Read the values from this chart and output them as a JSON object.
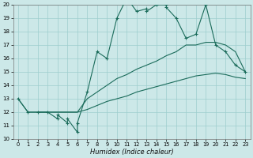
{
  "xlabel": "Humidex (Indice chaleur)",
  "bg_color": "#cce8e8",
  "grid_color": "#9ecece",
  "line_color": "#1a6b5a",
  "xlim_min": 0,
  "xlim_max": 23,
  "ylim_min": 10,
  "ylim_max": 20,
  "xticks": [
    0,
    1,
    2,
    3,
    4,
    5,
    6,
    7,
    8,
    9,
    10,
    11,
    12,
    13,
    14,
    15,
    16,
    17,
    18,
    19,
    20,
    21,
    22,
    23
  ],
  "yticks": [
    10,
    11,
    12,
    13,
    14,
    15,
    16,
    17,
    18,
    19,
    20
  ],
  "main_x": [
    0,
    1,
    2,
    3,
    4,
    4,
    5,
    5,
    6,
    6,
    7,
    8,
    9,
    10,
    11,
    12,
    13,
    13,
    14,
    15,
    15,
    16,
    17,
    18,
    19,
    20,
    21,
    22,
    23
  ],
  "main_y": [
    13,
    12,
    12,
    12,
    11.5,
    11.8,
    11.2,
    11.5,
    10.5,
    11.2,
    13.5,
    16.5,
    16,
    19,
    20.5,
    19.5,
    19.7,
    19.5,
    20,
    20,
    19.8,
    19,
    17.5,
    17.8,
    20,
    17,
    16.5,
    15.5,
    15
  ],
  "upper_x": [
    0,
    1,
    2,
    3,
    4,
    5,
    6,
    7,
    8,
    9,
    10,
    11,
    12,
    13,
    14,
    15,
    16,
    17,
    18,
    19,
    20,
    21,
    22,
    23
  ],
  "upper_y": [
    13,
    12,
    12,
    12,
    12,
    12,
    12,
    13,
    13.5,
    14,
    14.5,
    14.8,
    15.2,
    15.5,
    15.8,
    16.2,
    16.5,
    17,
    17,
    17.2,
    17.2,
    17,
    16.5,
    15
  ],
  "lower_x": [
    2,
    3,
    4,
    5,
    6,
    7,
    8,
    9,
    10,
    11,
    12,
    13,
    14,
    15,
    16,
    17,
    18,
    19,
    20,
    21,
    22,
    23
  ],
  "lower_y": [
    12,
    12,
    12,
    12,
    12,
    12.2,
    12.5,
    12.8,
    13.0,
    13.2,
    13.5,
    13.7,
    13.9,
    14.1,
    14.3,
    14.5,
    14.7,
    14.8,
    14.9,
    14.8,
    14.6,
    14.5
  ]
}
